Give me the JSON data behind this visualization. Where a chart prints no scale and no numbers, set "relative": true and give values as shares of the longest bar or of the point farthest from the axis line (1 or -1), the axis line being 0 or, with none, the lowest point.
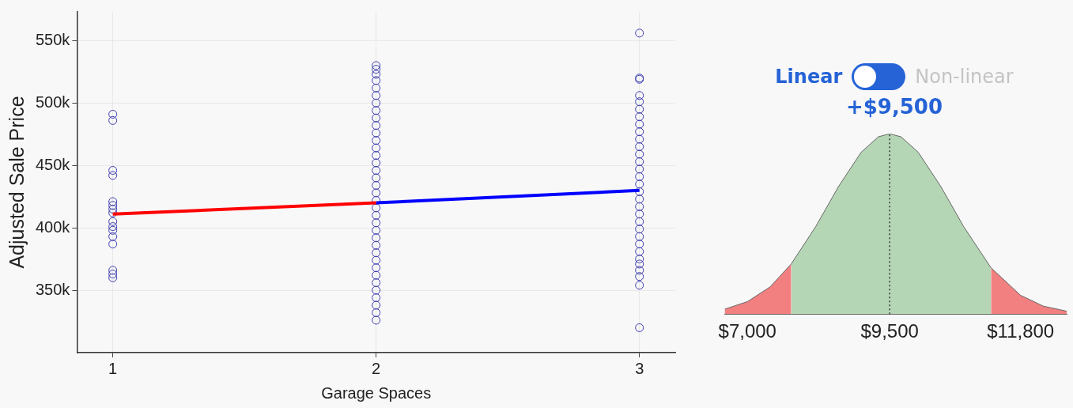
{
  "chart_data": [
    {
      "type": "scatter",
      "xlabel": "Garage Spaces",
      "ylabel": "Adjusted Sale Price",
      "xlim": [
        0.864,
        3.136
      ],
      "xticks": [
        1,
        2,
        3
      ],
      "ylim": [
        300000,
        573000
      ],
      "yticks": [
        {
          "value": 350000,
          "label": "350k"
        },
        {
          "value": 400000,
          "label": "400k"
        },
        {
          "value": 450000,
          "label": "450k"
        },
        {
          "value": 500000,
          "label": "500k"
        },
        {
          "value": 550000,
          "label": "550k"
        }
      ],
      "grid": true,
      "legend": false,
      "series": [
        {
          "type": "scatter",
          "marker": "circle",
          "color": "#3b3bb0",
          "x": [
            1,
            1,
            1,
            1,
            1,
            1,
            1,
            1,
            1,
            1,
            1,
            1,
            1,
            1,
            1,
            1
          ],
          "values": [
            491000,
            486000,
            446000,
            442000,
            421000,
            418000,
            415000,
            412000,
            405000,
            401000,
            398000,
            393000,
            387000,
            366000,
            363000,
            360000
          ]
        },
        {
          "type": "scatter",
          "marker": "circle",
          "color": "#3b3bb0",
          "x": [
            2,
            2,
            2,
            2,
            2,
            2,
            2,
            2,
            2,
            2,
            2,
            2,
            2,
            2,
            2,
            2,
            2,
            2,
            2,
            2,
            2,
            2,
            2,
            2,
            2,
            2,
            2,
            2,
            2,
            2,
            2,
            2,
            2,
            2,
            2,
            2
          ],
          "values": [
            530000,
            527000,
            523000,
            518000,
            512000,
            506000,
            500000,
            494000,
            488000,
            482000,
            476000,
            470000,
            464000,
            458000,
            452000,
            446000,
            440000,
            434000,
            428000,
            422000,
            416000,
            410000,
            404000,
            398000,
            392000,
            386000,
            380000,
            374000,
            368000,
            362000,
            356000,
            350000,
            344000,
            338000,
            332000,
            326000
          ]
        },
        {
          "type": "scatter",
          "marker": "circle",
          "color": "#3b3bb0",
          "x": [
            3,
            3,
            3,
            3,
            3,
            3,
            3,
            3,
            3,
            3,
            3,
            3,
            3,
            3,
            3,
            3,
            3,
            3,
            3,
            3,
            3,
            3,
            3,
            3,
            3,
            3,
            3,
            3,
            3,
            3,
            3
          ],
          "values": [
            556000,
            520000,
            519000,
            506000,
            501000,
            495000,
            489000,
            483000,
            477000,
            471000,
            465000,
            459000,
            453000,
            447000,
            441000,
            435000,
            429000,
            423000,
            417000,
            411000,
            405000,
            399000,
            393000,
            387000,
            381000,
            375000,
            371000,
            366000,
            361000,
            354000,
            320000
          ]
        },
        {
          "type": "line",
          "color": "#ff0000",
          "x": [
            1,
            2
          ],
          "values": [
            411000,
            420000
          ]
        },
        {
          "type": "line",
          "color": "#0000ff",
          "x": [
            2,
            3
          ],
          "values": [
            420000,
            430000
          ]
        }
      ]
    },
    {
      "type": "area",
      "title": "+$9,500",
      "annotations": [
        "Linear",
        "Non-linear"
      ],
      "relative": true,
      "xlim": [
        6600,
        12610
      ],
      "xticks": [
        {
          "value": 7000,
          "label": "$7,000"
        },
        {
          "value": 9500,
          "label": "$9,500"
        },
        {
          "value": 11800,
          "label": "$11,800"
        }
      ],
      "tick_labels": "x",
      "legend": false,
      "ref_lines": [
        {
          "axis": "x",
          "value": 9500,
          "color": "#333333",
          "line_style": "dotted"
        }
      ],
      "series": [
        {
          "color": "#f28080",
          "x": [
            6600,
            7000,
            7400,
            7770
          ],
          "values": [
            0.027,
            0.069,
            0.151,
            0.278
          ]
        },
        {
          "color": "#b5d6b5",
          "x": [
            7770,
            8200,
            8600,
            9000,
            9300,
            9500,
            9700,
            10000,
            10400,
            10800,
            11280
          ],
          "values": [
            0.278,
            0.485,
            0.707,
            0.898,
            0.983,
            1,
            0.983,
            0.898,
            0.707,
            0.485,
            0.257
          ]
        },
        {
          "color": "#f28080",
          "x": [
            11280,
            11800,
            12200,
            12610
          ],
          "values": [
            0.257,
            0.104,
            0.044,
            0.016
          ]
        }
      ]
    }
  ]
}
